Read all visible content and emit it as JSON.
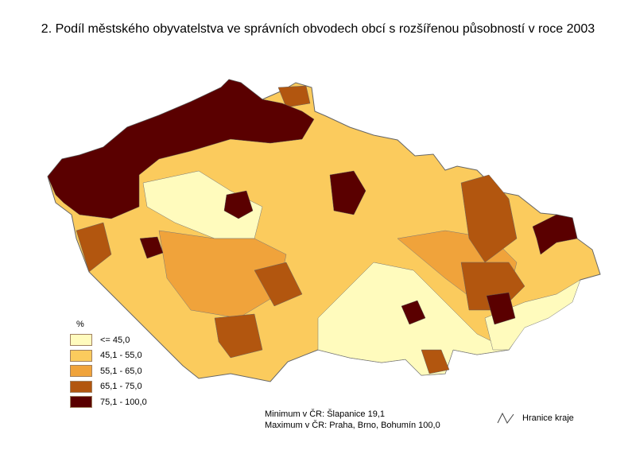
{
  "title": "2. Podíl městského obyvatelstva ve správních obvodech obcí s rozšířenou působností v roce 2003",
  "legend": {
    "unit": "%",
    "classes": [
      {
        "label": "<= 45,0",
        "color": "#FFFBBD"
      },
      {
        "label": "45,1 - 55,0",
        "color": "#FBCB5D"
      },
      {
        "label": "55,1 - 65,0",
        "color": "#F0A33B"
      },
      {
        "label": "65,1 - 75,0",
        "color": "#B2560F"
      },
      {
        "label": "75,1 - 100,0",
        "color": "#5A0000"
      }
    ]
  },
  "notes": {
    "minimum": "Minimum v ČR: Šlapanice 19,1",
    "maximum": "Maximum v ČR: Praha, Brno, Bohumín 100,0"
  },
  "border_legend": {
    "label": "Hranice kraje",
    "icon": "region-border-line-icon"
  }
}
